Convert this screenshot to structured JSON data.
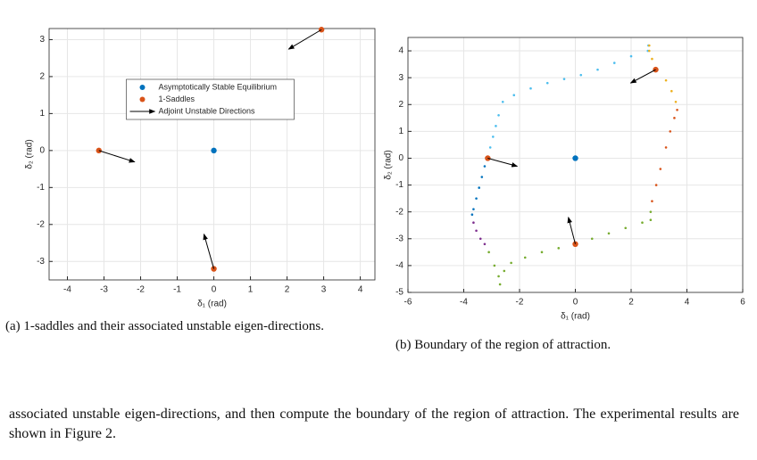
{
  "chart_data": [
    {
      "type": "scatter",
      "xlabel": "δ₁ (rad)",
      "ylabel": "δ₂ (rad)",
      "xlim": [
        -4.5,
        4.4
      ],
      "ylim": [
        -3.5,
        3.3
      ],
      "xticks": [
        -4,
        -3,
        -2,
        -1,
        0,
        1,
        2,
        3,
        4
      ],
      "yticks": [
        -3,
        -2,
        -1,
        0,
        1,
        2,
        3
      ],
      "grid": true,
      "legend": "north",
      "series": [
        {
          "name": "Asymptotically Stable Equilibrium",
          "color": "#0072bd",
          "x": [
            0
          ],
          "y": [
            0
          ]
        },
        {
          "name": "1-Saddles",
          "color": "#d95319",
          "x": [
            -3.14,
            2.94,
            0
          ],
          "y": [
            0,
            3.27,
            -3.2
          ]
        }
      ],
      "arrows": {
        "name": "Adjoint Unstable Directions",
        "color": "#000000",
        "x": [
          -3.14,
          2.94,
          0
        ],
        "y": [
          0,
          3.27,
          -3.2
        ],
        "x_end": [
          -2.16,
          2.04,
          -0.27
        ],
        "y_end": [
          -0.31,
          2.74,
          -2.26
        ]
      }
    },
    {
      "type": "scatter",
      "xlabel": "δ₁ (rad)",
      "ylabel": "δ₂ (rad)",
      "xlim": [
        -6,
        6
      ],
      "ylim": [
        -5,
        4.5
      ],
      "xticks": [
        -6,
        -4,
        -2,
        0,
        2,
        4,
        6
      ],
      "yticks": [
        -5,
        -4,
        -3,
        -2,
        -1,
        0,
        1,
        2,
        3,
        4
      ],
      "grid": true,
      "series": [
        {
          "color": "#4dbeee",
          "x": [
            -3.05,
            -2.95,
            -2.85,
            -2.75,
            -2.6,
            -2.2,
            -1.6,
            -1,
            -0.4,
            0.2,
            0.8,
            1.4,
            2.0,
            2.6,
            2.62
          ],
          "y": [
            0.4,
            0.8,
            1.2,
            1.6,
            2.1,
            2.35,
            2.6,
            2.8,
            2.95,
            3.1,
            3.3,
            3.55,
            3.8,
            4.0,
            4.2
          ]
        },
        {
          "color": "#0072bd",
          "x": [
            -3.25,
            -3.35,
            -3.45,
            -3.55,
            -3.65,
            -3.7
          ],
          "y": [
            -0.3,
            -0.7,
            -1.1,
            -1.5,
            -1.9,
            -2.1
          ]
        },
        {
          "color": "#7e2f8e",
          "x": [
            -3.65,
            -3.55,
            -3.4,
            -3.25
          ],
          "y": [
            -2.4,
            -2.7,
            -3.0,
            -3.2
          ]
        },
        {
          "color": "#77ac30",
          "x": [
            -3.1,
            -2.9,
            -2.75,
            -2.7,
            -2.55,
            -2.3,
            -1.8,
            -1.2,
            -0.6,
            0.6,
            1.2,
            1.8,
            2.4,
            2.7,
            2.7
          ],
          "y": [
            -3.5,
            -4.0,
            -4.4,
            -4.7,
            -4.2,
            -3.9,
            -3.7,
            -3.5,
            -3.35,
            -3.0,
            -2.8,
            -2.6,
            -2.4,
            -2.3,
            -2.0
          ]
        },
        {
          "color": "#d95319",
          "x": [
            2.75,
            2.9,
            3.05,
            3.25,
            3.4,
            3.55,
            3.65
          ],
          "y": [
            -1.6,
            -1.0,
            -0.4,
            0.4,
            1.0,
            1.5,
            1.8
          ]
        },
        {
          "color": "#edb120",
          "x": [
            3.6,
            3.45,
            3.25,
            2.75,
            2.65,
            2.65
          ],
          "y": [
            2.1,
            2.5,
            2.9,
            3.7,
            4.0,
            4.2
          ]
        },
        {
          "color": "#0072bd",
          "x": [
            0
          ],
          "y": [
            0
          ]
        },
        {
          "color": "#d95319",
          "x": [
            -3.14,
            2.88,
            0
          ],
          "y": [
            0,
            3.3,
            -3.2
          ]
        }
      ],
      "arrows": {
        "color": "#000000",
        "x": [
          -3.14,
          2.88,
          0
        ],
        "y": [
          0,
          3.3,
          -3.2
        ],
        "x_end": [
          -2.08,
          1.98,
          -0.25
        ],
        "y_end": [
          -0.3,
          2.8,
          -2.2
        ]
      }
    }
  ],
  "captions": [
    "(a)  1-saddles and their associated unstable eigen-directions.",
    "(b)  Boundary of the region of attraction."
  ],
  "body": "associated unstable eigen-directions, and then compute the boundary of the region of attraction. The experimental results are shown in Figure 2."
}
